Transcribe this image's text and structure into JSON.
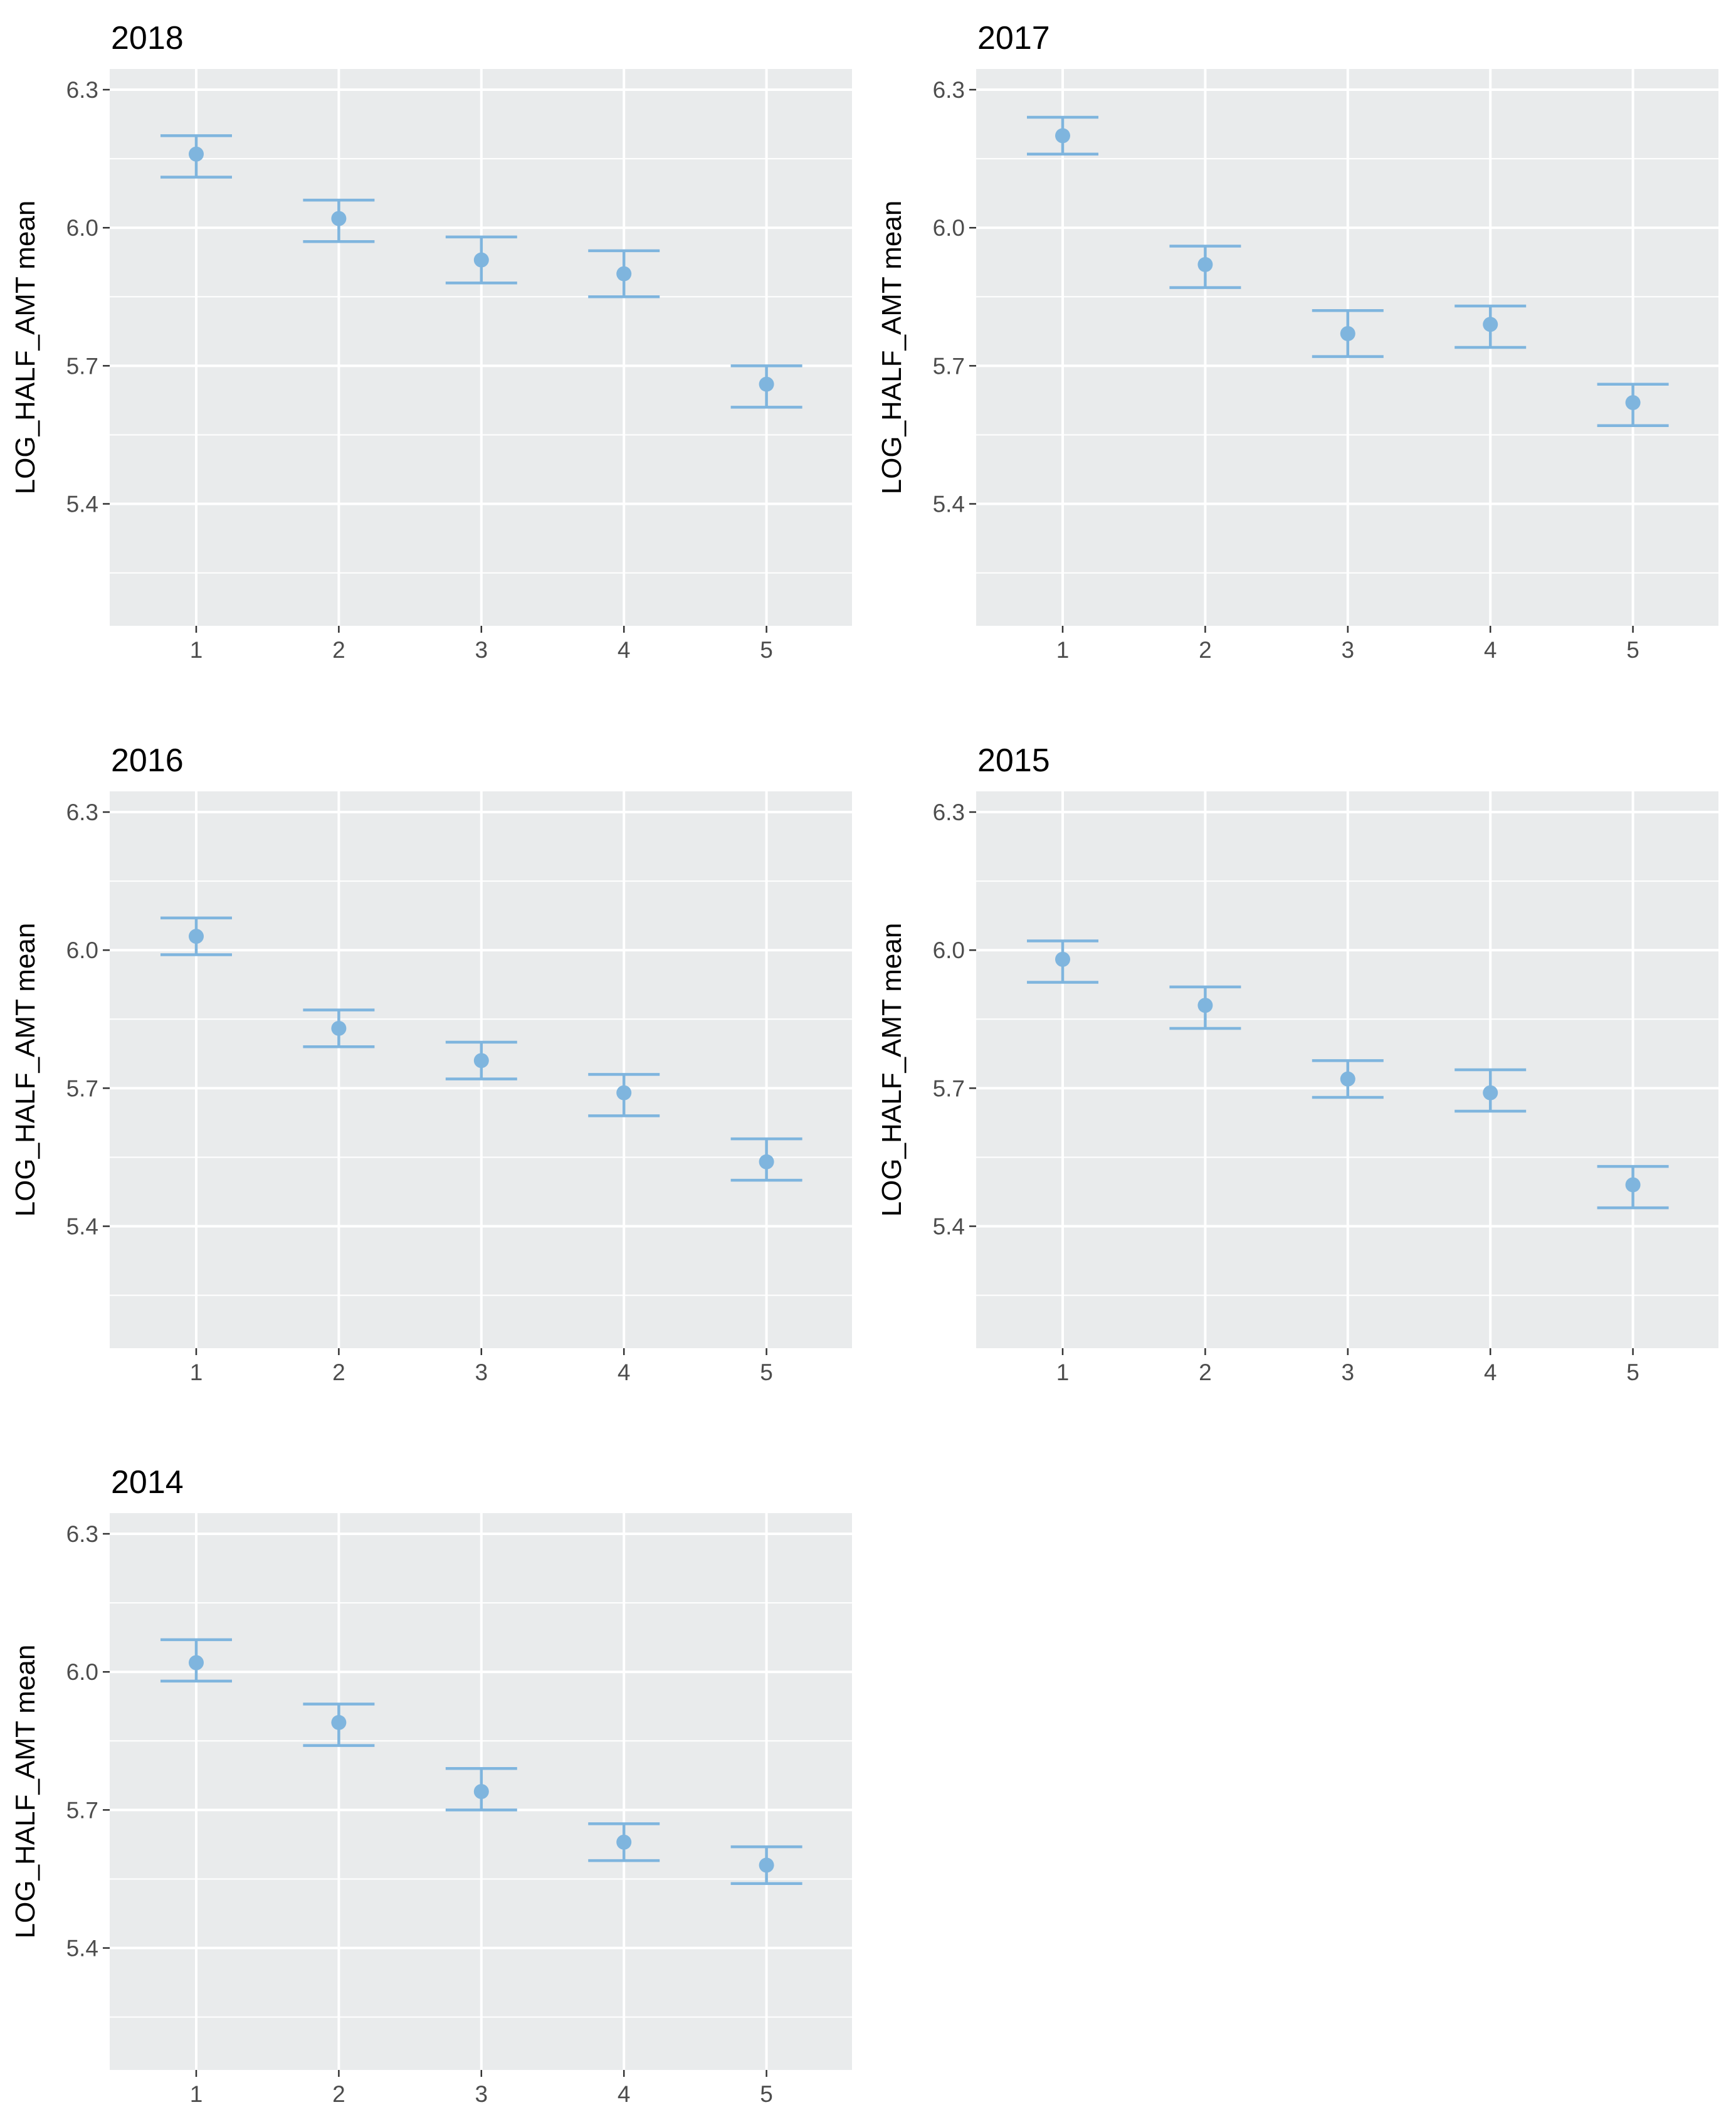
{
  "chart_data": [
    {
      "type": "scatter",
      "title": "2018",
      "xlabel": "",
      "ylabel": "LOG_HALF_AMT mean",
      "categories": [
        "1",
        "2",
        "3",
        "4",
        "5"
      ],
      "values": [
        6.16,
        6.02,
        5.93,
        5.9,
        5.66
      ],
      "error_low": [
        6.11,
        5.97,
        5.88,
        5.85,
        5.61
      ],
      "error_high": [
        6.2,
        6.06,
        5.98,
        5.95,
        5.7
      ],
      "yticks": [
        "5.4",
        "5.7",
        "6.0",
        "6.3"
      ],
      "ylim": [
        5.135,
        6.345
      ],
      "grid": true
    },
    {
      "type": "scatter",
      "title": "2017",
      "xlabel": "",
      "ylabel": "LOG_HALF_AMT mean",
      "categories": [
        "1",
        "2",
        "3",
        "4",
        "5"
      ],
      "values": [
        6.2,
        5.92,
        5.77,
        5.79,
        5.62
      ],
      "error_low": [
        6.16,
        5.87,
        5.72,
        5.74,
        5.57
      ],
      "error_high": [
        6.24,
        5.96,
        5.82,
        5.83,
        5.66
      ],
      "yticks": [
        "5.4",
        "5.7",
        "6.0",
        "6.3"
      ],
      "ylim": [
        5.135,
        6.345
      ],
      "grid": true
    },
    {
      "type": "scatter",
      "title": "2016",
      "xlabel": "",
      "ylabel": "LOG_HALF_AMT mean",
      "categories": [
        "1",
        "2",
        "3",
        "4",
        "5"
      ],
      "values": [
        6.03,
        5.83,
        5.76,
        5.69,
        5.54
      ],
      "error_low": [
        5.99,
        5.79,
        5.72,
        5.64,
        5.5
      ],
      "error_high": [
        6.07,
        5.87,
        5.8,
        5.73,
        5.59
      ],
      "yticks": [
        "5.4",
        "5.7",
        "6.0",
        "6.3"
      ],
      "ylim": [
        5.135,
        6.345
      ],
      "grid": true
    },
    {
      "type": "scatter",
      "title": "2015",
      "xlabel": "",
      "ylabel": "LOG_HALF_AMT mean",
      "categories": [
        "1",
        "2",
        "3",
        "4",
        "5"
      ],
      "values": [
        5.98,
        5.88,
        5.72,
        5.69,
        5.49
      ],
      "error_low": [
        5.93,
        5.83,
        5.68,
        5.65,
        5.44
      ],
      "error_high": [
        6.02,
        5.92,
        5.76,
        5.74,
        5.53
      ],
      "yticks": [
        "5.4",
        "5.7",
        "6.0",
        "6.3"
      ],
      "ylim": [
        5.135,
        6.345
      ],
      "grid": true
    },
    {
      "type": "scatter",
      "title": "2014",
      "xlabel": "",
      "ylabel": "LOG_HALF_AMT mean",
      "categories": [
        "1",
        "2",
        "3",
        "4",
        "5"
      ],
      "values": [
        6.02,
        5.89,
        5.74,
        5.63,
        5.58
      ],
      "error_low": [
        5.98,
        5.84,
        5.7,
        5.59,
        5.54
      ],
      "error_high": [
        6.07,
        5.93,
        5.79,
        5.67,
        5.62
      ],
      "yticks": [
        "5.4",
        "5.7",
        "6.0",
        "6.3"
      ],
      "ylim": [
        5.135,
        6.345
      ],
      "grid": true
    }
  ],
  "colors": {
    "panel_background": "#e9ebec",
    "grid": "#ffffff",
    "point": "#7fb5de",
    "tick_text": "#4d4d4d",
    "tick_mark": "#333333",
    "text": "#000000"
  }
}
